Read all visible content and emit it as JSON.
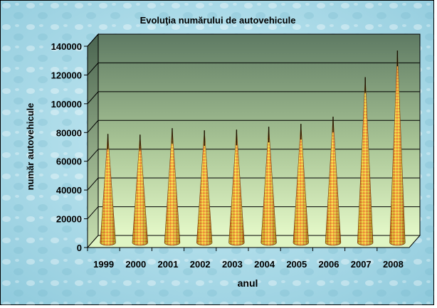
{
  "chart_data": {
    "type": "bar",
    "title": "Evoluţia numărului de autovehicule",
    "xlabel": "anul",
    "ylabel": "număr autovehicule",
    "categories": [
      "1999",
      "2000",
      "2001",
      "2002",
      "2003",
      "2004",
      "2005",
      "2006",
      "2007",
      "2008"
    ],
    "series": [
      {
        "values": [
          79000,
          78500,
          83000,
          81500,
          82000,
          84000,
          86000,
          91000,
          118500,
          137000
        ]
      }
    ],
    "ylim": [
      0,
      140000
    ],
    "yticks": [
      "0",
      "20000",
      "40000",
      "60000",
      "80000",
      "100000",
      "120000",
      "140000"
    ],
    "grid": true,
    "legend": "none",
    "colors": {
      "background": "#a8d8e6",
      "plot_top": "#5e7a63",
      "plot_bottom": "#e4f8c8",
      "bar_orange": "#f07818",
      "bar_yellow": "#f8e030",
      "tick_dark": "#1a1000"
    }
  }
}
